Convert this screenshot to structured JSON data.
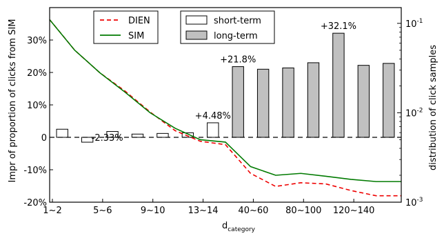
{
  "chart_data": {
    "type": "bar",
    "title": "",
    "xlabel": {
      "main": "d",
      "sub": "category"
    },
    "ylabel_left": "Impr of proportion of clicks from SIM",
    "ylabel_right": "distribution of click samples",
    "ylim_left": [
      -20,
      40
    ],
    "y_ticks_left": [
      "-20%",
      "-10%",
      "0",
      "10%",
      "20%",
      "30%"
    ],
    "ylim_right_log": [
      0.001,
      0.15
    ],
    "x_tick_labels": [
      "1~2",
      "5~6",
      "9~10",
      "13~14",
      "40~60",
      "80~100",
      "120~140"
    ],
    "x_tick_positions": [
      0,
      2,
      4,
      6,
      8,
      10,
      12
    ],
    "n_groups": 14,
    "bar_series": [
      {
        "name": "short-term",
        "color": "#ffffff",
        "values": [
          2.5,
          -1.5,
          1.8,
          1.0,
          1.2,
          1.4,
          4.48
        ]
      },
      {
        "name": "long-term",
        "color": "#c0c0c0",
        "values": [
          21.8,
          21.0,
          21.4,
          23.0,
          32.1,
          22.2,
          22.8
        ]
      }
    ],
    "bar_annotations": [
      {
        "index": 1,
        "text": "-2.33%"
      },
      {
        "index": 6,
        "text": "+4.48%"
      },
      {
        "index": 7,
        "text": "+21.8%"
      },
      {
        "index": 11,
        "text": "+32.1%"
      }
    ],
    "line_series": [
      {
        "name": "DIEN",
        "color": "#ee0000",
        "dashed": true,
        "x": [
          0,
          1,
          2,
          3,
          4,
          5,
          6,
          7,
          8,
          9,
          10,
          11,
          12,
          13,
          14
        ],
        "values": [
          0.11,
          0.05,
          0.028,
          0.0175,
          0.0102,
          0.0063,
          0.0048,
          0.0044,
          0.0021,
          0.0015,
          0.00165,
          0.0016,
          0.00135,
          0.00118,
          0.00118
        ]
      },
      {
        "name": "SIM",
        "color": "#007a00",
        "dashed": false,
        "x": [
          0,
          1,
          2,
          3,
          4,
          5,
          6,
          7,
          8,
          9,
          10,
          11,
          12,
          13,
          14
        ],
        "values": [
          0.11,
          0.05,
          0.028,
          0.017,
          0.01,
          0.0067,
          0.005,
          0.0047,
          0.0025,
          0.002,
          0.0021,
          0.00195,
          0.0018,
          0.0017,
          0.0017
        ]
      }
    ],
    "legend_lines": {
      "position": "top-left",
      "entries": [
        "DIEN",
        "SIM"
      ]
    },
    "legend_bars": {
      "position": "top-center",
      "entries": [
        "short-term",
        "long-term"
      ]
    },
    "y_ticks_right": [
      {
        "base": "10",
        "exp": "-1",
        "value": 0.1
      },
      {
        "base": "10",
        "exp": "-2",
        "value": 0.01
      },
      {
        "base": "10",
        "exp": "-3",
        "value": 0.001
      }
    ],
    "zero_line": "dashed",
    "grid": false
  }
}
